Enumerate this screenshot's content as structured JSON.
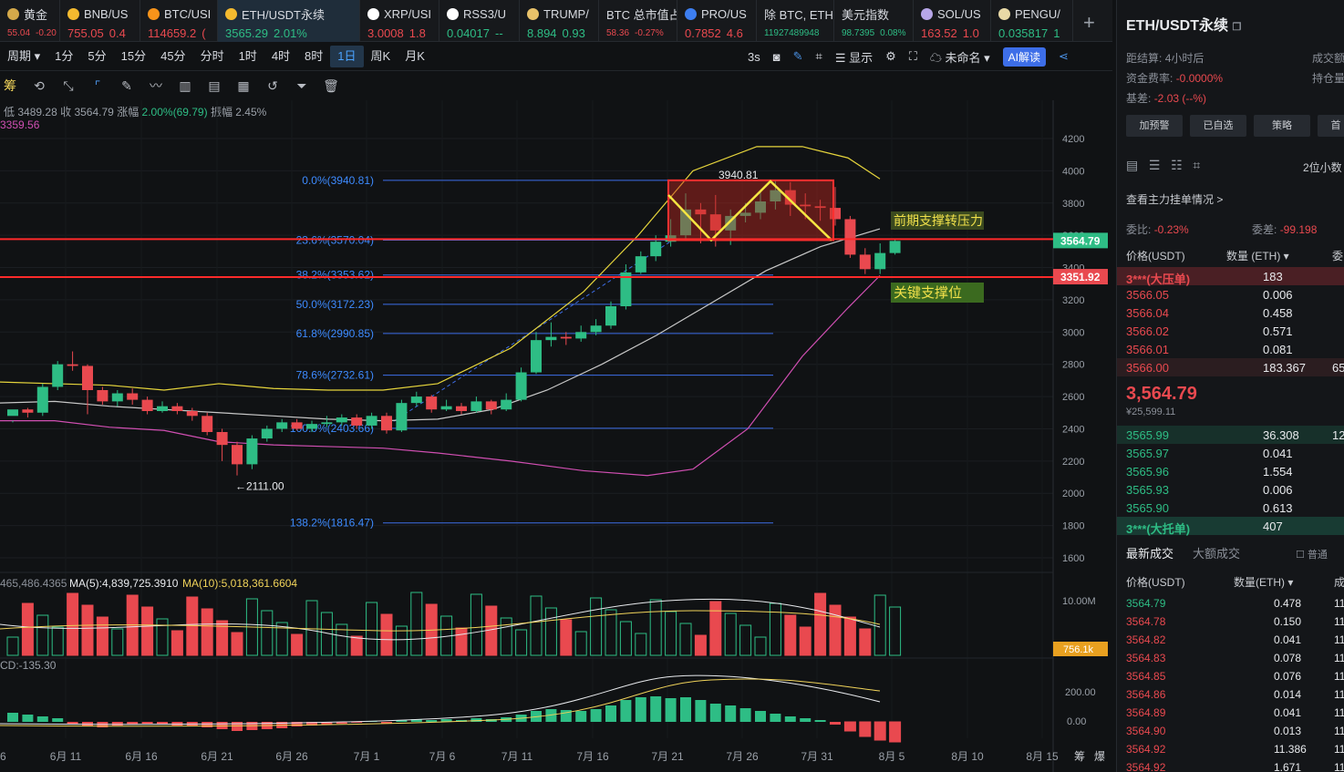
{
  "tabs": [
    {
      "name": "黄金",
      "price": "55.04",
      "change": "-0.20",
      "color": "red",
      "coin": "#d4a94a",
      "small": true
    },
    {
      "name": "BNB/US",
      "price": "755.05",
      "change": "0.4",
      "color": "red",
      "coin": "#f3ba2f"
    },
    {
      "name": "BTC/USI",
      "price": "114659.2",
      "change": "(",
      "color": "red",
      "coin": "#f7931a"
    },
    {
      "name": "ETH/USDT永续",
      "price": "3565.29",
      "change": "2.01%",
      "color": "green",
      "coin": "#f3ba2f"
    },
    {
      "name": "XRP/USI",
      "price": "3.0008",
      "change": "1.8",
      "color": "red",
      "coin": "#ffffff"
    },
    {
      "name": "RSS3/U",
      "price": "0.04017",
      "change": "--",
      "color": "green",
      "coin": "#ffffff"
    },
    {
      "name": "TRUMP/",
      "price": "8.894",
      "change": "0.93",
      "color": "green",
      "coin": "#e8c26a"
    },
    {
      "name": "BTC 总市值占",
      "price": "58.36",
      "change": "-0.27%",
      "color": "red",
      "small": true
    },
    {
      "name": "PRO/US",
      "price": "0.7852",
      "change": "4.6",
      "color": "red",
      "coin": "#3d7ef0"
    },
    {
      "name": "除 BTC, ETH",
      "price": "11927489948",
      "change": "",
      "color": "green",
      "small": true
    },
    {
      "name": "美元指数",
      "price": "98.7395",
      "change": "0.08%",
      "color": "green",
      "small": true
    },
    {
      "name": "SOL/US",
      "price": "163.52",
      "change": "1.0",
      "color": "red",
      "coin": "#b7a6e8"
    },
    {
      "name": "PENGU/",
      "price": "0.035817",
      "change": "1",
      "color": "green",
      "coin": "#e8d9a6"
    }
  ],
  "toolbar": {
    "period": "周期",
    "timeframes": [
      "1分",
      "5分",
      "15分",
      "45分",
      "分时",
      "1时",
      "4时",
      "8时",
      "1日",
      "周K",
      "月K"
    ],
    "active": "1日",
    "refresh": "3s",
    "display": "显示",
    "unnamed": "未命名",
    "ai": "AI解读"
  },
  "draw_tools": {
    "label": "筹"
  },
  "info": {
    "low_label": "低",
    "low": "3489.28",
    "close_label": "收",
    "close": "3564.79",
    "chg_label": "涨幅",
    "chg": "2.00%(69.79)",
    "amp_label": "振幅",
    "amp": "2.45%",
    "ma_line": "3359.56"
  },
  "chart_data": {
    "type": "candlestick",
    "symbol": "ETH/USDT永续",
    "y_ticks": [
      1600,
      1800,
      2000,
      2200,
      2400,
      2600,
      2800,
      3000,
      3200,
      3400,
      3600,
      3800,
      4000,
      4200
    ],
    "x_labels": [
      "6",
      "6月 11",
      "6月 16",
      "6月 21",
      "6月 26",
      "7月 1",
      "7月 6",
      "7月 11",
      "7月 16",
      "7月 21",
      "7月 26",
      "7月 31",
      "8月 5",
      "8月 10",
      "8月 15"
    ],
    "fib_levels": [
      {
        "label": "0.0%(3940.81)",
        "value": 3940.81
      },
      {
        "label": "23.6%(3570.04)",
        "value": 3570.04
      },
      {
        "label": "38.2%(3353.62)",
        "value": 3353.62
      },
      {
        "label": "50.0%(3172.23)",
        "value": 3172.23
      },
      {
        "label": "61.8%(2990.85)",
        "value": 2990.85
      },
      {
        "label": "78.6%(2732.61)",
        "value": 2732.61
      },
      {
        "label": "100.0%(2403.66)",
        "value": 2403.66
      },
      {
        "label": "138.2%(1816.47)",
        "value": 1816.47
      }
    ],
    "current_price": "3564.79",
    "support_price": "3351.92",
    "high_label": "3940.81",
    "low_label": "←2111.00",
    "annotations": {
      "resistance": "前期支撑转压力",
      "support": "关键支撑位"
    },
    "candles": [
      [
        2480,
        2520,
        2450,
        2440
      ],
      [
        2520,
        2500,
        2530,
        2470
      ],
      [
        2500,
        2660,
        2680,
        2480
      ],
      [
        2660,
        2800,
        2820,
        2640
      ],
      [
        2800,
        2790,
        2880,
        2760
      ],
      [
        2790,
        2640,
        2800,
        2490
      ],
      [
        2640,
        2570,
        2660,
        2550
      ],
      [
        2570,
        2620,
        2640,
        2540
      ],
      [
        2620,
        2580,
        2650,
        2550
      ],
      [
        2580,
        2510,
        2600,
        2490
      ],
      [
        2510,
        2540,
        2570,
        2500
      ],
      [
        2540,
        2510,
        2560,
        2490
      ],
      [
        2510,
        2480,
        2530,
        2450
      ],
      [
        2480,
        2380,
        2500,
        2360
      ],
      [
        2380,
        2300,
        2400,
        2200
      ],
      [
        2300,
        2180,
        2320,
        2111
      ],
      [
        2180,
        2340,
        2360,
        2150
      ],
      [
        2340,
        2400,
        2420,
        2320
      ],
      [
        2400,
        2440,
        2460,
        2380
      ],
      [
        2440,
        2400,
        2460,
        2390
      ],
      [
        2400,
        2430,
        2450,
        2380
      ],
      [
        2430,
        2440,
        2480,
        2410
      ],
      [
        2440,
        2470,
        2490,
        2420
      ],
      [
        2470,
        2420,
        2490,
        2400
      ],
      [
        2420,
        2480,
        2500,
        2400
      ],
      [
        2480,
        2390,
        2500,
        2370
      ],
      [
        2390,
        2560,
        2580,
        2380
      ],
      [
        2560,
        2600,
        2630,
        2540
      ],
      [
        2600,
        2520,
        2610,
        2500
      ],
      [
        2520,
        2540,
        2580,
        2510
      ],
      [
        2540,
        2510,
        2560,
        2490
      ],
      [
        2510,
        2570,
        2600,
        2500
      ],
      [
        2570,
        2520,
        2580,
        2490
      ],
      [
        2520,
        2580,
        2620,
        2510
      ],
      [
        2580,
        2750,
        2780,
        2570
      ],
      [
        2750,
        2950,
        3000,
        2740
      ],
      [
        2950,
        2970,
        3060,
        2910
      ],
      [
        2970,
        2960,
        3000,
        2920
      ],
      [
        2960,
        3000,
        3040,
        2940
      ],
      [
        3000,
        3040,
        3080,
        2980
      ],
      [
        3040,
        3160,
        3190,
        3020
      ],
      [
        3160,
        3370,
        3420,
        3140
      ],
      [
        3370,
        3470,
        3500,
        3360
      ],
      [
        3470,
        3560,
        3600,
        3440
      ],
      [
        3560,
        3600,
        3700,
        3530
      ],
      [
        3600,
        3760,
        3860,
        3580
      ],
      [
        3760,
        3730,
        3800,
        3550
      ],
      [
        3730,
        3630,
        3850,
        3530
      ],
      [
        3630,
        3720,
        3760,
        3540
      ],
      [
        3720,
        3740,
        3800,
        3680
      ],
      [
        3740,
        3810,
        3880,
        3700
      ],
      [
        3810,
        3880,
        3940,
        3760
      ],
      [
        3880,
        3790,
        3930,
        3720
      ],
      [
        3790,
        3780,
        3860,
        3700
      ],
      [
        3780,
        3770,
        3820,
        3690
      ],
      [
        3770,
        3700,
        3900,
        3660
      ],
      [
        3700,
        3480,
        3720,
        3460
      ],
      [
        3480,
        3390,
        3520,
        3360
      ],
      [
        3390,
        3490,
        3550,
        3360
      ],
      [
        3490,
        3565,
        3580,
        3480
      ]
    ],
    "volume_header": {
      "prefix": "465,486.4365",
      "ma5": "MA(5):4,839,725.3910",
      "ma10": "MA(10):5,018,361.6604"
    },
    "volume_ticks": [
      "10.00M"
    ],
    "volume_current": "756.1k",
    "macd_header": "CD:-135.30",
    "macd_ticks": [
      "200.00",
      "0.00"
    ],
    "x_extra": [
      "筹",
      "爆"
    ]
  },
  "side": {
    "title": "ETH/USDT永续",
    "settle_label": "距结算:",
    "settle": "4小时后",
    "volume_label": "成交额",
    "funding_label": "资金费率:",
    "funding": "-0.0000%",
    "oi_label": "持仓量",
    "basis_label": "基差:",
    "basis": "-2.03 (--%)",
    "buttons": [
      "加预警",
      "已自选",
      "策略",
      "首"
    ],
    "decimals": "2位小数",
    "main_orders": "查看主力挂单情况 >",
    "ratio_label": "委比:",
    "ratio": "-0.23%",
    "diff_label": "委差:",
    "diff": "-99.198",
    "col_price": "价格(USDT)",
    "col_qty": "数量 (ETH) ▾",
    "col_extra": "委",
    "asks": [
      {
        "price": "3***(大压单)",
        "qty": "183",
        "big": true
      },
      {
        "price": "3566.05",
        "qty": "0.006"
      },
      {
        "price": "3566.04",
        "qty": "0.458"
      },
      {
        "price": "3566.02",
        "qty": "0.571"
      },
      {
        "price": "3566.01",
        "qty": "0.081"
      },
      {
        "price": "3566.00",
        "qty": "183.367",
        "extra": "65",
        "hl": true
      }
    ],
    "last_price": "3,564.79",
    "last_cny": "¥25,599.11",
    "bids": [
      {
        "price": "3565.99",
        "qty": "36.308",
        "extra": "12",
        "hl": true
      },
      {
        "price": "3565.97",
        "qty": "0.041"
      },
      {
        "price": "3565.96",
        "qty": "1.554"
      },
      {
        "price": "3565.93",
        "qty": "0.006"
      },
      {
        "price": "3565.90",
        "qty": "0.613"
      },
      {
        "price": "3***(大托单)",
        "qty": "407",
        "big": true
      }
    ],
    "trades_tab": "最新成交",
    "big_tab": "大额成交",
    "normal_label": "普通",
    "trade_col_price": "价格(USDT)",
    "trade_col_qty": "数量(ETH) ▾",
    "trade_col_time": "成",
    "trades": [
      {
        "price": "3564.79",
        "qty": "0.478",
        "side": "g"
      },
      {
        "price": "3564.78",
        "qty": "0.150",
        "side": "r"
      },
      {
        "price": "3564.82",
        "qty": "0.041",
        "side": "r"
      },
      {
        "price": "3564.83",
        "qty": "0.078",
        "side": "r"
      },
      {
        "price": "3564.85",
        "qty": "0.076",
        "side": "r"
      },
      {
        "price": "3564.86",
        "qty": "0.014",
        "side": "r"
      },
      {
        "price": "3564.89",
        "qty": "0.041",
        "side": "r"
      },
      {
        "price": "3564.90",
        "qty": "0.013",
        "side": "r"
      },
      {
        "price": "3564.92",
        "qty": "11.386",
        "side": "r"
      },
      {
        "price": "3564.92",
        "qty": "1.671",
        "side": "r"
      }
    ]
  }
}
